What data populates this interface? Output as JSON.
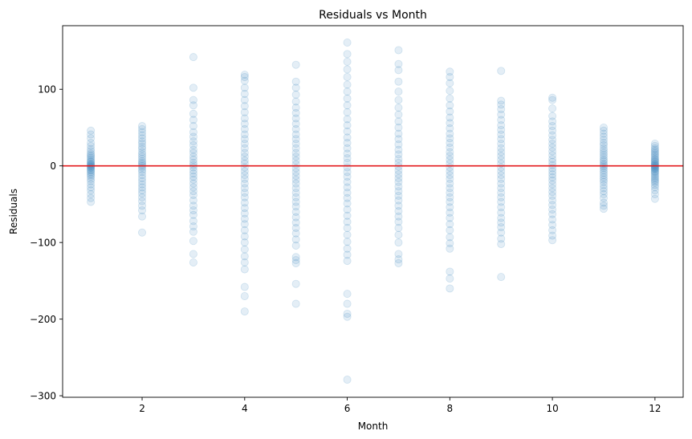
{
  "chart_data": {
    "type": "scatter",
    "title": "Residuals vs Month",
    "xlabel": "Month",
    "ylabel": "Residuals",
    "xlim": [
      0.45,
      12.55
    ],
    "ylim": [
      -302,
      183
    ],
    "x_ticks": [
      2,
      4,
      6,
      8,
      10,
      12
    ],
    "y_ticks": [
      100,
      0,
      -100,
      -200,
      -300
    ],
    "y_tick_labels": [
      "100",
      "0",
      "−100",
      "−200",
      "−300"
    ],
    "grid": false,
    "legend": "none",
    "point_color": "#1f77b4",
    "point_alpha": 0.12,
    "reference_line": {
      "y": 0,
      "color": "#e31a1c"
    },
    "points_by_month": [
      {
        "x": 1,
        "residuals": [
          46,
          41,
          36,
          30,
          26,
          22,
          19,
          16,
          14,
          12,
          10,
          8,
          6,
          5,
          3,
          2,
          1,
          0,
          -1,
          -2,
          -3,
          -5,
          -6,
          -8,
          -10,
          -12,
          -14,
          -17,
          -20,
          -24,
          -28,
          -32,
          -37,
          -42,
          -47
        ]
      },
      {
        "x": 2,
        "residuals": [
          52,
          48,
          44,
          40,
          36,
          32,
          29,
          25,
          22,
          18,
          15,
          12,
          9,
          6,
          4,
          2,
          0,
          -2,
          -5,
          -8,
          -12,
          -16,
          -20,
          -24,
          -28,
          -32,
          -36,
          -41,
          -46,
          -52,
          -58,
          -66,
          -87
        ]
      },
      {
        "x": 3,
        "residuals": [
          142,
          102,
          86,
          79,
          68,
          60,
          52,
          44,
          38,
          32,
          27,
          21,
          17,
          12,
          8,
          4,
          1,
          -2,
          -6,
          -10,
          -14,
          -18,
          -23,
          -28,
          -33,
          -38,
          -45,
          -52,
          -58,
          -64,
          -72,
          -79,
          -86,
          -98,
          -115,
          -126
        ]
      },
      {
        "x": 4,
        "residuals": [
          119,
          116,
          111,
          102,
          94,
          86,
          78,
          70,
          62,
          55,
          48,
          41,
          35,
          29,
          23,
          17,
          12,
          7,
          3,
          -2,
          -7,
          -12,
          -17,
          -23,
          -29,
          -35,
          -41,
          -48,
          -55,
          -62,
          -69,
          -76,
          -84,
          -92,
          -100,
          -109,
          -118,
          -126,
          -135,
          -158,
          -170,
          -190
        ]
      },
      {
        "x": 5,
        "residuals": [
          132,
          110,
          102,
          93,
          84,
          76,
          69,
          62,
          55,
          48,
          41,
          35,
          29,
          23,
          17,
          12,
          7,
          2,
          -3,
          -8,
          -13,
          -18,
          -23,
          -29,
          -35,
          -41,
          -47,
          -53,
          -60,
          -67,
          -74,
          -81,
          -88,
          -96,
          -104,
          -119,
          -123,
          -127,
          -154,
          -180
        ]
      },
      {
        "x": 6,
        "residuals": [
          161,
          146,
          136,
          126,
          116,
          106,
          97,
          88,
          79,
          70,
          61,
          53,
          45,
          37,
          30,
          23,
          16,
          10,
          4,
          -2,
          -8,
          -14,
          -21,
          -28,
          -35,
          -42,
          -49,
          -57,
          -65,
          -73,
          -81,
          -90,
          -99,
          -108,
          -116,
          -124,
          -167,
          -180,
          -193,
          -197,
          -279
        ]
      },
      {
        "x": 7,
        "residuals": [
          151,
          133,
          125,
          110,
          97,
          86,
          76,
          67,
          58,
          50,
          42,
          35,
          28,
          21,
          15,
          9,
          4,
          -1,
          -6,
          -11,
          -16,
          -21,
          -27,
          -33,
          -39,
          -45,
          -52,
          -59,
          -66,
          -73,
          -81,
          -90,
          -100,
          -115,
          -122,
          -127
        ]
      },
      {
        "x": 8,
        "residuals": [
          123,
          116,
          108,
          98,
          88,
          79,
          71,
          63,
          56,
          49,
          42,
          36,
          30,
          24,
          18,
          13,
          8,
          3,
          -2,
          -7,
          -12,
          -17,
          -23,
          -29,
          -35,
          -41,
          -47,
          -54,
          -61,
          -68,
          -76,
          -84,
          -93,
          -101,
          -108,
          -138,
          -147,
          -160
        ]
      },
      {
        "x": 9,
        "residuals": [
          124,
          85,
          80,
          74,
          67,
          60,
          53,
          47,
          41,
          35,
          29,
          23,
          18,
          13,
          8,
          3,
          -2,
          -7,
          -12,
          -17,
          -23,
          -29,
          -35,
          -41,
          -47,
          -54,
          -61,
          -68,
          -74,
          -80,
          -87,
          -95,
          -102,
          -145
        ]
      },
      {
        "x": 10,
        "residuals": [
          89,
          86,
          75,
          65,
          58,
          52,
          46,
          40,
          34,
          29,
          24,
          19,
          14,
          9,
          5,
          1,
          -3,
          -7,
          -11,
          -15,
          -19,
          -24,
          -29,
          -34,
          -39,
          -45,
          -51,
          -57,
          -63,
          -70,
          -77,
          -84,
          -91,
          -97
        ]
      },
      {
        "x": 11,
        "residuals": [
          50,
          46,
          42,
          38,
          34,
          30,
          27,
          23,
          20,
          17,
          14,
          11,
          8,
          6,
          3,
          1,
          -1,
          -3,
          -6,
          -9,
          -12,
          -15,
          -18,
          -21,
          -25,
          -29,
          -33,
          -37,
          -42,
          -48,
          -52,
          -56
        ]
      },
      {
        "x": 12,
        "residuals": [
          29,
          26,
          23,
          21,
          19,
          17,
          15,
          13,
          11,
          9,
          8,
          6,
          5,
          3,
          2,
          1,
          0,
          -1,
          -2,
          -3,
          -4,
          -5,
          -7,
          -8,
          -10,
          -12,
          -14,
          -16,
          -18,
          -20,
          -22,
          -25,
          -28,
          -32,
          -37,
          -43
        ]
      }
    ]
  }
}
